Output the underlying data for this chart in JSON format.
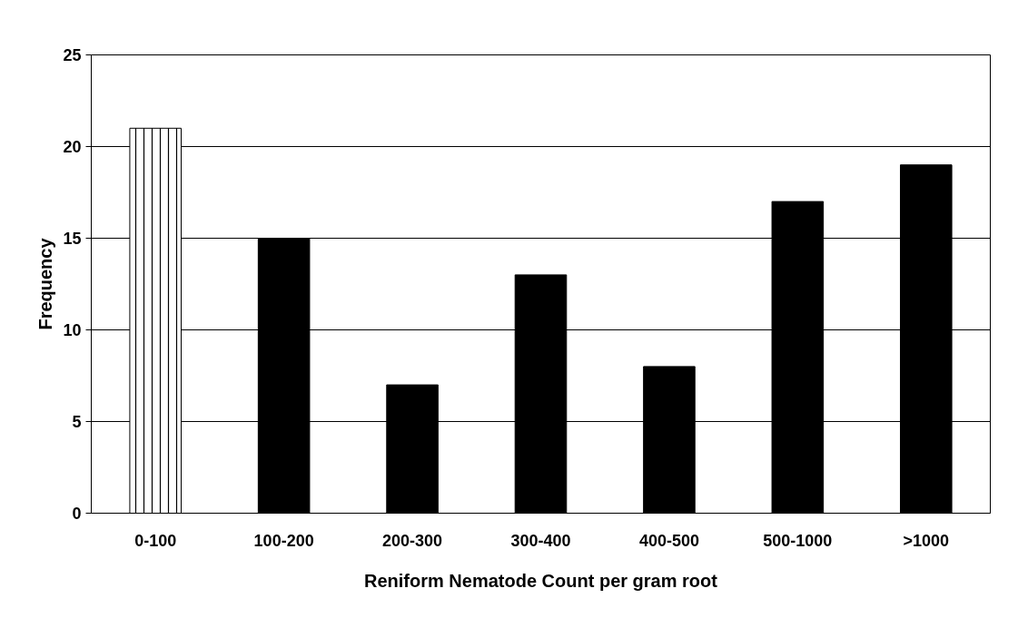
{
  "chart_data": {
    "type": "bar",
    "xlabel": "Reniform Nematode Count per gram root",
    "ylabel": "Frequency",
    "categories": [
      "0-100",
      "100-200",
      "200-300",
      "300-400",
      "400-500",
      "500-1000",
      ">1000"
    ],
    "values": [
      21,
      15,
      7,
      13,
      8,
      17,
      19
    ],
    "colors": [
      "#ffffff",
      "#000000",
      "#000000",
      "#000000",
      "#000000",
      "#000000",
      "#000000"
    ],
    "ylim": [
      0,
      25
    ],
    "yticks": [
      0,
      5,
      10,
      15,
      20,
      25
    ],
    "grid": "y"
  }
}
